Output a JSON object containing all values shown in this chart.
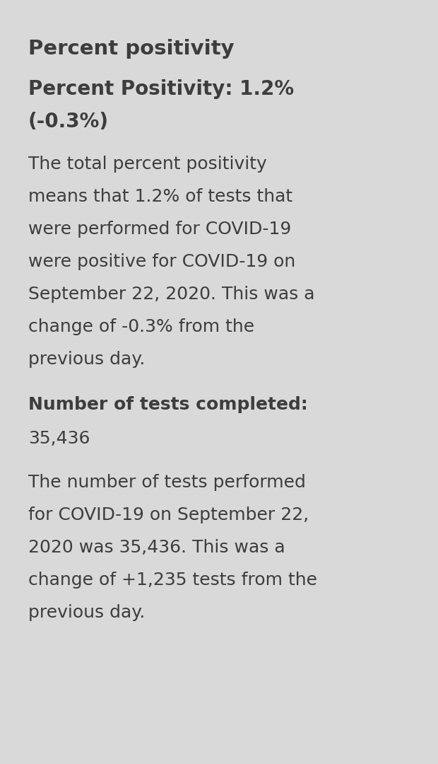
{
  "background_color": "#d9d9d9",
  "text_color": "#3d3d3d",
  "title": "Percent positivity",
  "title_fontsize": 21,
  "subtitle_line1": "Percent Positivity: 1.2%",
  "subtitle_line2": "(-0.3%)",
  "subtitle_fontsize": 20,
  "body1_lines": [
    "The total percent positivity",
    "means that 1.2% of tests that",
    "were performed for COVID-19",
    "were positive for COVID-19 on",
    "September 22, 2020. This was a",
    "change of -0.3% from the",
    "previous day."
  ],
  "body1_fontsize": 18,
  "section2_label": "Number of tests completed:",
  "section2_value": "35,436",
  "section2_fontsize": 18,
  "body2_lines": [
    "The number of tests performed",
    "for COVID-19 on September 22,",
    "2020 was 35,436. This was a",
    "change of +1,235 tests from the",
    "previous day."
  ],
  "body2_fontsize": 18,
  "fig_width": 6.2,
  "fig_height": 10.8,
  "dpi": 100
}
